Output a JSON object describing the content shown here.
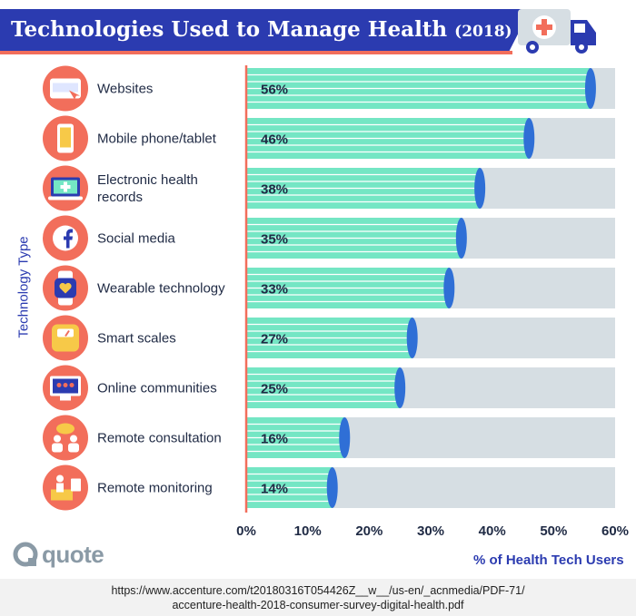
{
  "title": {
    "main": "Technologies Used to Manage Health",
    "year": "(2018)"
  },
  "colors": {
    "title_bg": "#2b3bb0",
    "accent": "#f26e5b",
    "bar_fill": "#74e6c4",
    "bar_track": "#d6dee3",
    "bar_cap": "#2f6fd6",
    "axis_label": "#2b3bb0",
    "icon_circle": "#f26e5b"
  },
  "icons": [
    "www-icon",
    "mobile-phone-icon",
    "laptop-medical-icon",
    "facebook-icon",
    "smartwatch-heart-icon",
    "smart-scale-icon",
    "online-community-icon",
    "remote-consultation-icon",
    "remote-monitoring-icon"
  ],
  "chart_data": {
    "type": "bar",
    "orientation": "horizontal",
    "categories": [
      "Websites",
      "Mobile phone/tablet",
      "Electronic health records",
      "Social media",
      "Wearable technology",
      "Smart scales",
      "Online communities",
      "Remote consultation",
      "Remote monitoring"
    ],
    "values": [
      56,
      46,
      38,
      35,
      33,
      27,
      25,
      16,
      14
    ],
    "value_labels": [
      "56%",
      "46%",
      "38%",
      "35%",
      "33%",
      "27%",
      "25%",
      "16%",
      "14%"
    ],
    "xlabel": "% of Health Tech Users",
    "ylabel": "Technology Type",
    "xlim": [
      0,
      60
    ],
    "xticks": [
      "0%",
      "10%",
      "20%",
      "30%",
      "40%",
      "50%",
      "60%"
    ],
    "grid": false
  },
  "logo": {
    "text": "quote"
  },
  "source": {
    "line1": "https://www.accenture.com/t20180316T054426Z__w__/us-en/_acnmedia/PDF-71/",
    "line2": "accenture-health-2018-consumer-survey-digital-health.pdf"
  }
}
